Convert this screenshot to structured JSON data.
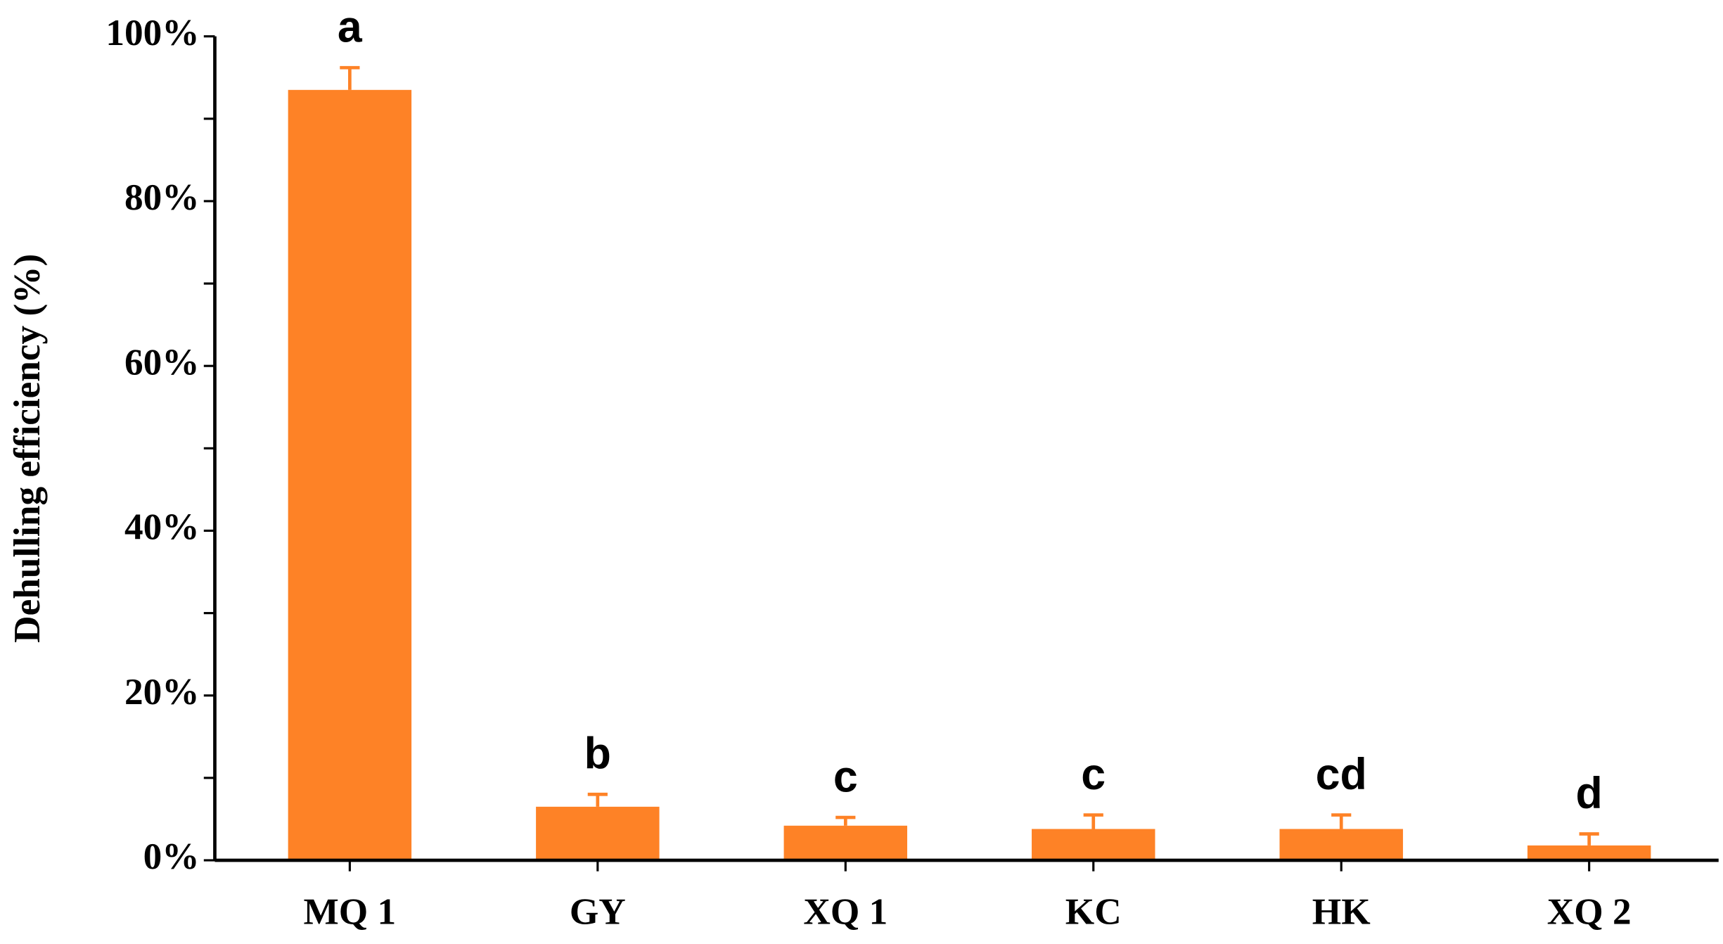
{
  "chart_data": {
    "type": "bar",
    "y_label": "Dehulling efficiency (%)",
    "categories": [
      "MQ 1",
      "GY",
      "XQ 1",
      "KC",
      "HK",
      "XQ 2"
    ],
    "values": [
      93.5,
      6.5,
      4.2,
      3.8,
      3.8,
      1.8
    ],
    "errors": [
      2.7,
      1.5,
      1.0,
      1.7,
      1.7,
      1.4
    ],
    "annotations": [
      "a",
      "b",
      "c",
      "c",
      "cd",
      "d"
    ],
    "color": "#fe8226",
    "ylim": [
      0,
      100
    ],
    "yticks": [
      {
        "value": 0,
        "label": "0%"
      },
      {
        "value": 20,
        "label": "20%"
      },
      {
        "value": 40,
        "label": "40%"
      },
      {
        "value": 60,
        "label": "60%"
      },
      {
        "value": 80,
        "label": "80%"
      },
      {
        "value": 100,
        "label": "100%"
      }
    ],
    "minor_yticks": [
      10,
      30,
      50,
      70,
      90
    ],
    "grid": false
  }
}
